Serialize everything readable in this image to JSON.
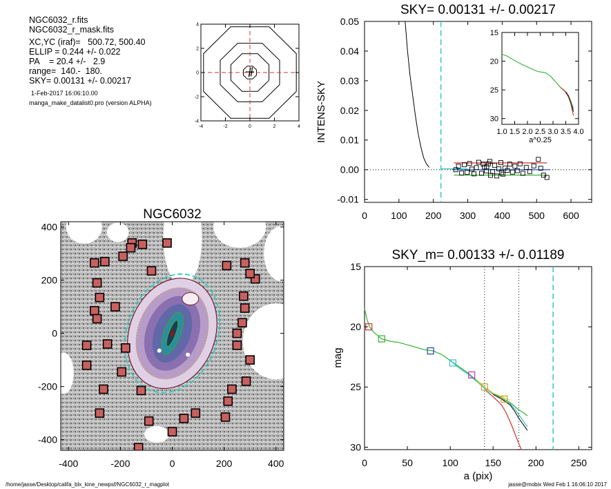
{
  "info": {
    "file_name": "NGC6032_r.fits",
    "mask_name": "NGC6032_r_mask.fits",
    "center": "XC,YC (iraf)=   500.72, 500.40",
    "ellip": "ELLIP = 0.244 +/- 0.022",
    "pa": "PA    = 20.4 +/-   2.9",
    "range": "range=  140.-  180.",
    "sky": "SKY= 0.00131 +/- 0.00217",
    "date": "1-Feb-2017 16:06:10.00",
    "program": "manga_make_datalist0.pro (version ALPHA)"
  },
  "footer": {
    "path": "/home/jasse/Desktop/califa_blx_kine_newpsf/NGC6032_r_magplot",
    "user": "jasse@mobix  Wed Feb  1 16:06:10 2017"
  },
  "chart_data": [
    {
      "id": "center-contours",
      "type": "contour",
      "title": "",
      "xlim": [
        -4,
        4
      ],
      "ylim": [
        -4,
        4
      ],
      "xticks": [
        "-4",
        "-2",
        "0",
        "2",
        "4"
      ],
      "yticks": [
        "-4",
        "-2",
        "0",
        "2",
        "4"
      ],
      "contour_radii": [
        0.55,
        1.6,
        2.5,
        3.9
      ],
      "crosshair": [
        0,
        0
      ]
    },
    {
      "id": "sky-profile",
      "type": "scatter",
      "title": "SKY= 0.00131 +/- 0.00217",
      "xlabel": "",
      "ylabel": "INTENS-SKY",
      "xlim": [
        0,
        660
      ],
      "ylim": [
        -0.011,
        0.05
      ],
      "xticks": [
        "0",
        "100",
        "200",
        "300",
        "400",
        "500",
        "600"
      ],
      "yticks": [
        "-0.01",
        "0.00",
        "0.01",
        "0.02",
        "0.03",
        "0.04",
        "0.05"
      ],
      "dashed_vline": 222,
      "profile_curve": [
        [
          118,
          0.05
        ],
        [
          125,
          0.04
        ],
        [
          132,
          0.032
        ],
        [
          140,
          0.025
        ],
        [
          148,
          0.018
        ],
        [
          156,
          0.012
        ],
        [
          164,
          0.0075
        ],
        [
          172,
          0.004
        ],
        [
          180,
          0.002
        ],
        [
          188,
          0.0008
        ]
      ],
      "sky_points": [
        [
          265,
          0.0
        ],
        [
          273,
          0.0012
        ],
        [
          282,
          -0.0011
        ],
        [
          290,
          0.0017
        ],
        [
          298,
          -0.0009
        ],
        [
          305,
          0.0021
        ],
        [
          312,
          0.0002
        ],
        [
          318,
          -0.0014
        ],
        [
          325,
          0.0007
        ],
        [
          332,
          0.0025
        ],
        [
          340,
          -0.0012
        ],
        [
          348,
          0.0009
        ],
        [
          354,
          -0.0004
        ],
        [
          360,
          0.002
        ],
        [
          366,
          -0.0019
        ],
        [
          372,
          -0.0006
        ],
        [
          378,
          0.0015
        ],
        [
          384,
          -0.0021
        ],
        [
          390,
          0.0003
        ],
        [
          396,
          0.0024
        ],
        [
          402,
          -0.0015
        ],
        [
          408,
          0.0006
        ],
        [
          415,
          -0.0002
        ],
        [
          422,
          0.0019
        ],
        [
          430,
          -0.0008
        ],
        [
          437,
          0.0012
        ],
        [
          444,
          -0.0003
        ],
        [
          452,
          0.002
        ],
        [
          460,
          -0.0012
        ],
        [
          470,
          0.0008
        ],
        [
          480,
          -0.0006
        ],
        [
          492,
          0.0013
        ],
        [
          505,
          0.0035
        ],
        [
          512,
          0.0005
        ],
        [
          520,
          -0.0018
        ],
        [
          530,
          -0.0026
        ],
        [
          355,
          0.001
        ],
        [
          345,
          0.0019
        ],
        [
          398,
          -0.001
        ],
        [
          364,
          0.0028
        ]
      ],
      "sky_lines": [
        {
          "color": "#d03030",
          "y": 0.0023,
          "x": [
            260,
            530
          ]
        },
        {
          "color": "#2060d0",
          "y": 0.0,
          "x": [
            255,
            540
          ]
        },
        {
          "color": "#30b030",
          "y": -0.0018,
          "x": [
            260,
            530
          ]
        },
        {
          "color": "#30c0c0",
          "y": 0.0003,
          "x": [
            222,
            300
          ]
        }
      ]
    },
    {
      "id": "inset-profile",
      "type": "line",
      "title": "",
      "xlabel": "a^0.25",
      "ylabel": "",
      "xlim": [
        1.0,
        4.0
      ],
      "ylim": [
        15,
        31
      ],
      "xticks": [
        "1.0",
        "1.5",
        "2.0",
        "2.5",
        "3.0",
        "3.5",
        "4.0"
      ],
      "yticks": [
        "15",
        "20",
        "25",
        "30"
      ],
      "series": [
        {
          "color": "#30b030",
          "x": [
            1.0,
            1.2,
            1.5,
            1.8,
            2.1,
            2.4,
            2.7,
            2.9,
            3.1,
            3.3,
            3.45,
            3.6,
            3.7,
            3.8
          ],
          "y": [
            18.8,
            19.1,
            19.9,
            20.6,
            21.2,
            21.8,
            22.0,
            22.6,
            23.6,
            24.6,
            25.2,
            26.0,
            27.0,
            28.3
          ]
        },
        {
          "color": "#d03030",
          "x": [
            3.3,
            3.45,
            3.6,
            3.7,
            3.8
          ],
          "y": [
            24.6,
            25.1,
            26.2,
            27.4,
            29.5
          ]
        },
        {
          "color": "#202020",
          "x": [
            3.5,
            3.6,
            3.7,
            3.8
          ],
          "y": [
            25.3,
            26.0,
            27.2,
            28.8
          ]
        }
      ]
    },
    {
      "id": "galaxy-map",
      "type": "image",
      "title": "NGC6032",
      "xlim": [
        -430,
        430
      ],
      "ylim": [
        -440,
        420
      ],
      "xticks": [
        "-400",
        "-200",
        "0",
        "200",
        "400"
      ],
      "yticks": [
        "-400",
        "-200",
        "0",
        "200",
        "400"
      ],
      "ellipse_pa_deg": 20.4,
      "outer_dashed_ellipse": {
        "a": 235,
        "b": 175
      },
      "sky_boxes": [
        [
          -155,
          340
        ],
        [
          -115,
          335
        ],
        [
          -20,
          340
        ],
        [
          -260,
          270
        ],
        [
          -300,
          265
        ],
        [
          -190,
          290
        ],
        [
          -160,
          322
        ],
        [
          -80,
          235
        ],
        [
          -290,
          190
        ],
        [
          -280,
          135
        ],
        [
          -220,
          100
        ],
        [
          -300,
          85
        ],
        [
          -290,
          55
        ],
        [
          -330,
          -45
        ],
        [
          -250,
          -40
        ],
        [
          -180,
          -55
        ],
        [
          -330,
          -120
        ],
        [
          -195,
          -145
        ],
        [
          -265,
          -210
        ],
        [
          -120,
          -215
        ],
        [
          -280,
          -300
        ],
        [
          -90,
          -330
        ],
        [
          0,
          -370
        ],
        [
          45,
          -320
        ],
        [
          90,
          -300
        ],
        [
          205,
          -315
        ],
        [
          215,
          -255
        ],
        [
          230,
          -210
        ],
        [
          285,
          -180
        ],
        [
          300,
          -100
        ],
        [
          250,
          -45
        ],
        [
          250,
          0
        ],
        [
          270,
          40
        ],
        [
          280,
          95
        ],
        [
          275,
          140
        ],
        [
          320,
          205
        ],
        [
          300,
          225
        ],
        [
          280,
          265
        ],
        [
          210,
          255
        ],
        [
          -130,
          -430
        ]
      ]
    },
    {
      "id": "mag-profile",
      "type": "line",
      "title": "SKY_m=  0.00133 +/- 0.01189",
      "xlabel": "a (pix)",
      "ylabel": "mag",
      "xlim": [
        0,
        265
      ],
      "ylim": [
        15,
        30.2
      ],
      "xticks": [
        "0",
        "50",
        "100",
        "150",
        "200",
        "250"
      ],
      "yticks": [
        "15",
        "20",
        "25",
        "30"
      ],
      "dotted_vlines": [
        140,
        180
      ],
      "dashed_vline": 220,
      "series": [
        {
          "color": "#30b030",
          "x": [
            0,
            3,
            6,
            10,
            15,
            20,
            30,
            40,
            50,
            60,
            70,
            80,
            90,
            100,
            110,
            120,
            130,
            140,
            150,
            160,
            170,
            175,
            180,
            185,
            190
          ],
          "y": [
            18.5,
            19.4,
            20.0,
            20.4,
            20.7,
            21.0,
            21.2,
            21.3,
            21.5,
            21.7,
            21.9,
            22.0,
            22.3,
            22.8,
            23.3,
            23.8,
            24.4,
            25.0,
            25.5,
            25.9,
            26.3,
            26.6,
            26.9,
            27.1,
            27.4
          ]
        },
        {
          "color": "#30c0c0",
          "x": [
            100,
            110,
            120,
            130,
            140,
            150,
            160,
            170,
            175,
            180,
            185,
            190
          ],
          "y": [
            22.8,
            23.4,
            23.9,
            24.5,
            25.1,
            25.6,
            26.0,
            26.4,
            26.8,
            27.3,
            27.8,
            28.3
          ]
        },
        {
          "color": "#202020",
          "x": [
            150,
            160,
            170,
            175,
            180,
            185,
            190
          ],
          "y": [
            25.6,
            26.0,
            26.5,
            27.0,
            27.6,
            28.1,
            28.6
          ]
        },
        {
          "color": "#d03030",
          "x": [
            140,
            150,
            160,
            165,
            170,
            175,
            180,
            183
          ],
          "y": [
            25.2,
            25.8,
            26.5,
            27.1,
            27.9,
            28.8,
            29.7,
            30.2
          ]
        },
        {
          "color": "#d0d040",
          "x": [
            130,
            140,
            150,
            160,
            170
          ],
          "y": [
            24.5,
            25.0,
            25.5,
            25.8,
            26.1
          ]
        }
      ],
      "markers": [
        {
          "color": "#d03030",
          "x": 5,
          "y": 20.0
        },
        {
          "color": "#30b030",
          "x": 20,
          "y": 21.0
        },
        {
          "color": "#2040c0",
          "x": 77,
          "y": 22.0
        },
        {
          "color": "#30c0c0",
          "x": 103,
          "y": 23.0
        },
        {
          "color": "#c030c0",
          "x": 125,
          "y": 24.0
        },
        {
          "color": "#d0a020",
          "x": 140,
          "y": 25.0
        },
        {
          "color": "#d0a020",
          "x": 163,
          "y": 26.0
        }
      ]
    }
  ]
}
